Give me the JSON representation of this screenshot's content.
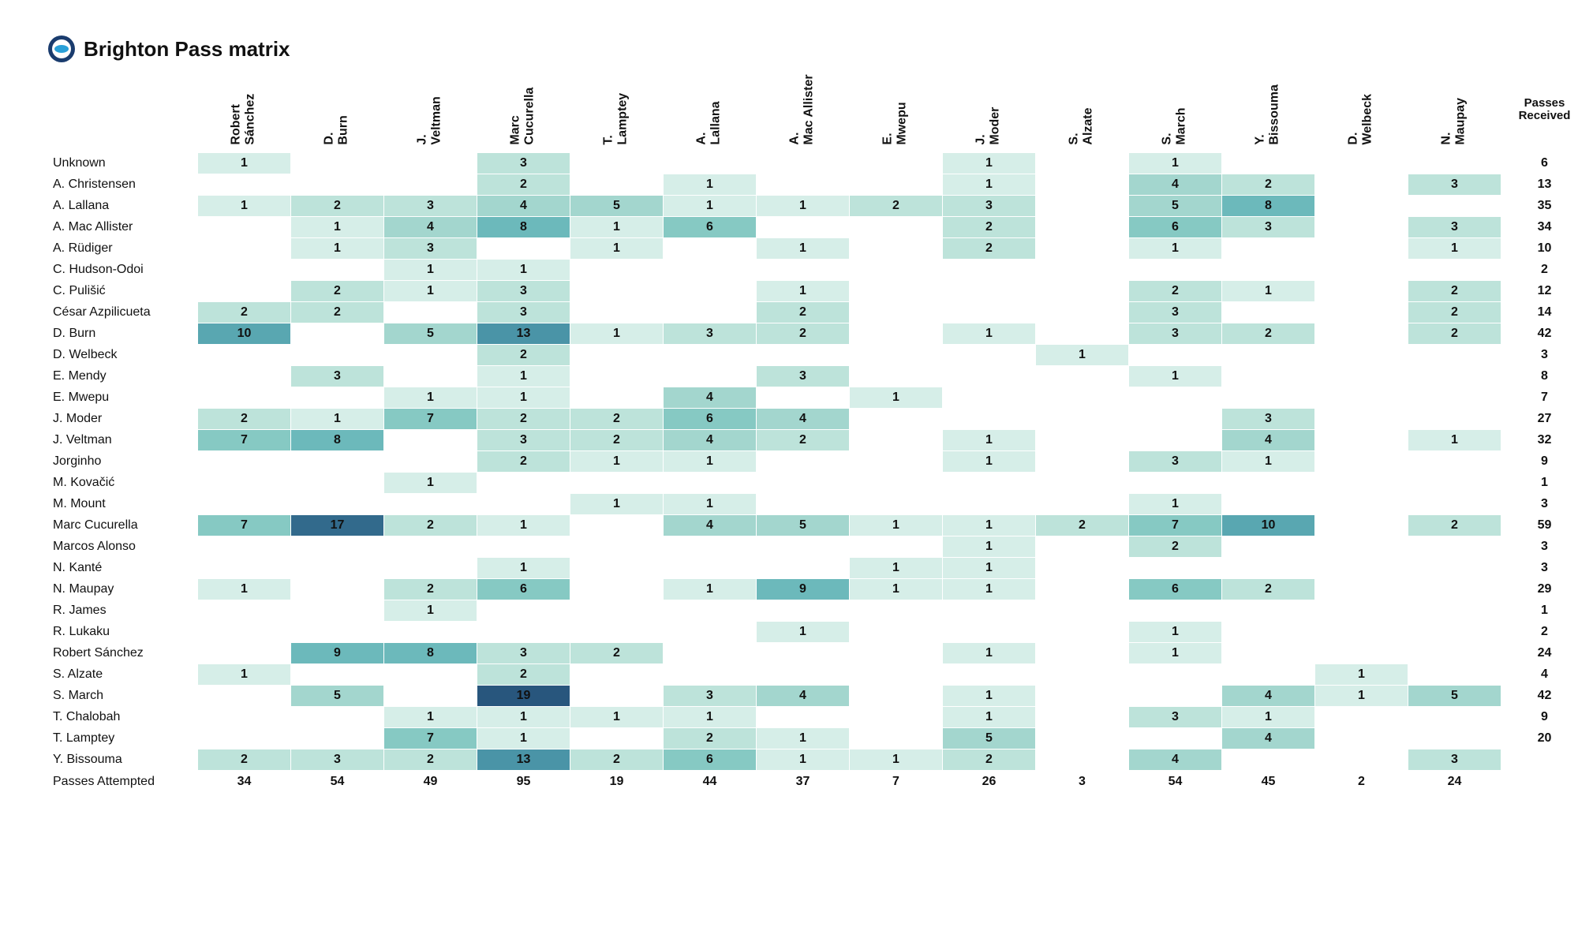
{
  "title": "Brighton Pass matrix",
  "logo": {
    "ring": "#1a3c6e",
    "inner": "#ffffff",
    "accent": "#2aa0d8"
  },
  "heat": {
    "empty": "#ffffff",
    "scale": [
      "#d6eee8",
      "#bde3da",
      "#a3d6ce",
      "#86c9c3",
      "#6cb9bb",
      "#59a7b1",
      "#4a94a7",
      "#3e7f9a",
      "#326a8c",
      "#28567d"
    ],
    "max": 19
  },
  "columns": [
    "Robert Sánchez",
    "D. Burn",
    "J. Veltman",
    "Marc Cucurella",
    "T. Lamptey",
    "A. Lallana",
    "A. Mac Allister",
    "E. Mwepu",
    "J. Moder",
    "S. Alzate",
    "S. March",
    "Y. Bissouma",
    "D. Welbeck",
    "N. Maupay"
  ],
  "received_header": "Passes Received",
  "passes_attempted_label": "Passes Attempted",
  "rows": [
    {
      "label": "Unknown",
      "cells": [
        1,
        null,
        null,
        3,
        null,
        null,
        null,
        null,
        1,
        null,
        1,
        null,
        null,
        null
      ],
      "received": 6
    },
    {
      "label": "A. Christensen",
      "cells": [
        null,
        null,
        null,
        2,
        null,
        1,
        null,
        null,
        1,
        null,
        4,
        2,
        null,
        3
      ],
      "received": 13
    },
    {
      "label": "A. Lallana",
      "cells": [
        1,
        2,
        3,
        4,
        5,
        1,
        1,
        2,
        3,
        null,
        5,
        8,
        null,
        null
      ],
      "received": 35
    },
    {
      "label": "A. Mac Allister",
      "cells": [
        null,
        1,
        4,
        8,
        1,
        6,
        null,
        null,
        2,
        null,
        6,
        3,
        null,
        3
      ],
      "received": 34
    },
    {
      "label": "A. Rüdiger",
      "cells": [
        null,
        1,
        3,
        null,
        1,
        null,
        1,
        null,
        2,
        null,
        1,
        null,
        null,
        1
      ],
      "received": 10
    },
    {
      "label": "C. Hudson-Odoi",
      "cells": [
        null,
        null,
        1,
        1,
        null,
        null,
        null,
        null,
        null,
        null,
        null,
        null,
        null,
        null
      ],
      "received": 2
    },
    {
      "label": "C. Pulišić",
      "cells": [
        null,
        2,
        1,
        3,
        null,
        null,
        1,
        null,
        null,
        null,
        2,
        1,
        null,
        2
      ],
      "received": 12
    },
    {
      "label": "César Azpilicueta",
      "cells": [
        2,
        2,
        null,
        3,
        null,
        null,
        2,
        null,
        null,
        null,
        3,
        null,
        null,
        2
      ],
      "received": 14
    },
    {
      "label": "D. Burn",
      "cells": [
        10,
        null,
        5,
        13,
        1,
        3,
        2,
        null,
        1,
        null,
        3,
        2,
        null,
        2
      ],
      "received": 42
    },
    {
      "label": "D. Welbeck",
      "cells": [
        null,
        null,
        null,
        2,
        null,
        null,
        null,
        null,
        null,
        1,
        null,
        null,
        null,
        null
      ],
      "received": 3
    },
    {
      "label": "E. Mendy",
      "cells": [
        null,
        3,
        null,
        1,
        null,
        null,
        3,
        null,
        null,
        null,
        1,
        null,
        null,
        null
      ],
      "received": 8
    },
    {
      "label": "E. Mwepu",
      "cells": [
        null,
        null,
        1,
        1,
        null,
        4,
        null,
        1,
        null,
        null,
        null,
        null,
        null,
        null
      ],
      "received": 7
    },
    {
      "label": "J. Moder",
      "cells": [
        2,
        1,
        7,
        2,
        2,
        6,
        4,
        null,
        null,
        null,
        null,
        3,
        null,
        null
      ],
      "received": 27
    },
    {
      "label": "J. Veltman",
      "cells": [
        7,
        8,
        null,
        3,
        2,
        4,
        2,
        null,
        1,
        null,
        null,
        4,
        null,
        1
      ],
      "received": 32
    },
    {
      "label": "Jorginho",
      "cells": [
        null,
        null,
        null,
        2,
        1,
        1,
        null,
        null,
        1,
        null,
        3,
        1,
        null,
        null
      ],
      "received": 9
    },
    {
      "label": "M. Kovačić",
      "cells": [
        null,
        null,
        1,
        null,
        null,
        null,
        null,
        null,
        null,
        null,
        null,
        null,
        null,
        null
      ],
      "received": 1
    },
    {
      "label": "M. Mount",
      "cells": [
        null,
        null,
        null,
        null,
        1,
        1,
        null,
        null,
        null,
        null,
        1,
        null,
        null,
        null
      ],
      "received": 3
    },
    {
      "label": "Marc Cucurella",
      "cells": [
        7,
        17,
        2,
        1,
        null,
        4,
        5,
        1,
        1,
        2,
        7,
        10,
        null,
        2
      ],
      "received": 59
    },
    {
      "label": "Marcos Alonso",
      "cells": [
        null,
        null,
        null,
        null,
        null,
        null,
        null,
        null,
        1,
        null,
        2,
        null,
        null,
        null
      ],
      "received": 3
    },
    {
      "label": "N. Kanté",
      "cells": [
        null,
        null,
        null,
        1,
        null,
        null,
        null,
        1,
        1,
        null,
        null,
        null,
        null,
        null
      ],
      "received": 3
    },
    {
      "label": "N. Maupay",
      "cells": [
        1,
        null,
        2,
        6,
        null,
        1,
        9,
        1,
        1,
        null,
        6,
        2,
        null,
        null
      ],
      "received": 29
    },
    {
      "label": "R. James",
      "cells": [
        null,
        null,
        1,
        null,
        null,
        null,
        null,
        null,
        null,
        null,
        null,
        null,
        null,
        null
      ],
      "received": 1
    },
    {
      "label": "R. Lukaku",
      "cells": [
        null,
        null,
        null,
        null,
        null,
        null,
        1,
        null,
        null,
        null,
        1,
        null,
        null,
        null
      ],
      "received": 2
    },
    {
      "label": "Robert Sánchez",
      "cells": [
        null,
        9,
        8,
        3,
        2,
        null,
        null,
        null,
        1,
        null,
        1,
        null,
        null,
        null
      ],
      "received": 24
    },
    {
      "label": "S. Alzate",
      "cells": [
        1,
        null,
        null,
        2,
        null,
        null,
        null,
        null,
        null,
        null,
        null,
        null,
        1,
        null
      ],
      "received": 4
    },
    {
      "label": "S. March",
      "cells": [
        null,
        5,
        null,
        19,
        null,
        3,
        4,
        null,
        1,
        null,
        null,
        4,
        1,
        5
      ],
      "received": 42
    },
    {
      "label": "T. Chalobah",
      "cells": [
        null,
        null,
        1,
        1,
        1,
        1,
        null,
        null,
        1,
        null,
        3,
        1,
        null,
        null
      ],
      "received": 9
    },
    {
      "label": "T. Lamptey",
      "cells": [
        null,
        null,
        7,
        1,
        null,
        2,
        1,
        null,
        5,
        null,
        null,
        4,
        null,
        null
      ],
      "received": 20
    },
    {
      "label": "Y. Bissouma",
      "cells": [
        2,
        3,
        2,
        13,
        2,
        6,
        1,
        1,
        2,
        null,
        4,
        null,
        null,
        3
      ],
      "received": null
    }
  ],
  "passes_attempted": [
    34,
    54,
    49,
    95,
    19,
    44,
    37,
    7,
    26,
    3,
    54,
    45,
    2,
    24
  ]
}
